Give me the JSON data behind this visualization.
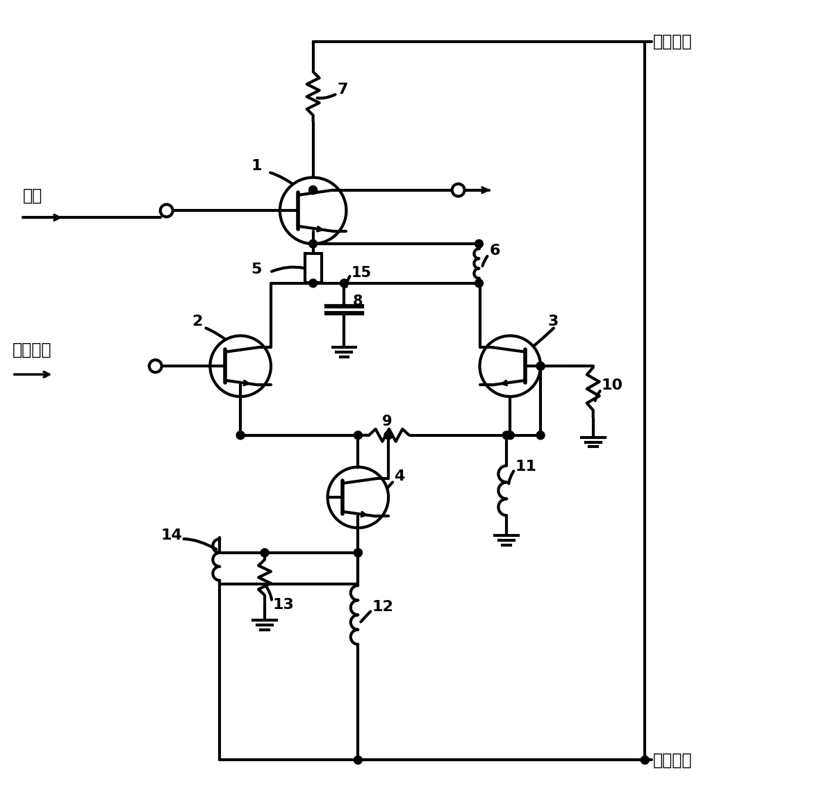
{
  "bg_color": "#ffffff",
  "lw": 3.0,
  "labels": {
    "dc_top": "直流电源",
    "dc_bot": "直流电源",
    "input": "输入",
    "control": "控制电压",
    "1": "1",
    "2": "2",
    "3": "3",
    "4": "4",
    "5": "5",
    "6": "6",
    "7": "7",
    "8": "8",
    "9": "9",
    "10": "10",
    "11": "11",
    "12": "12",
    "13": "13",
    "14": "14",
    "15": "15"
  },
  "font_size_label": 18,
  "font_size_num": 16,
  "font_size_cn": 17
}
